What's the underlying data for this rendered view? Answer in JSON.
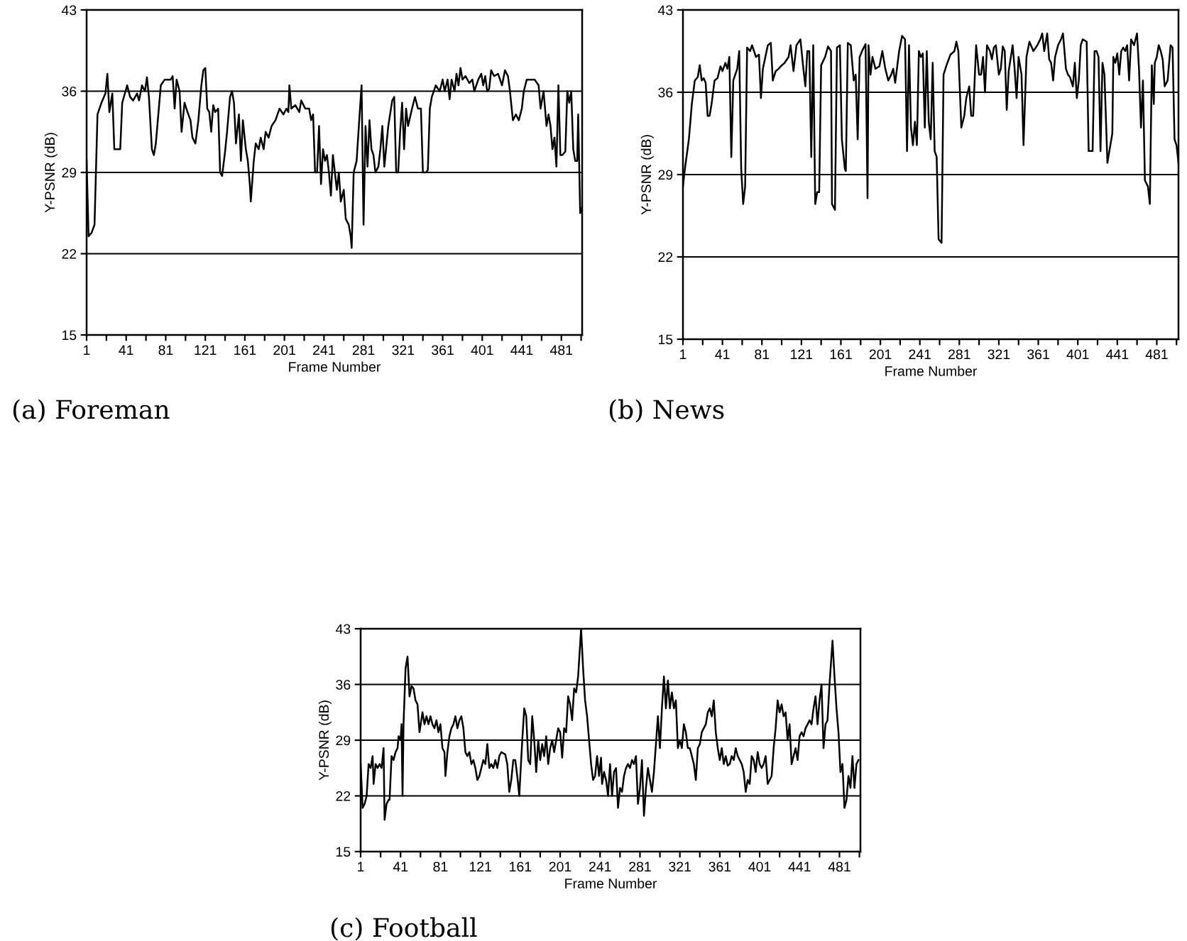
{
  "chart_data": [
    {
      "type": "line",
      "title": "(a) Foreman",
      "xlabel": "Frame Number",
      "ylabel": "Y-PSNR (dB)",
      "xlim": [
        1,
        502
      ],
      "ylim": [
        15,
        43
      ],
      "yticks": [
        15,
        22,
        29,
        36,
        43
      ],
      "xticks": [
        1,
        {
          "value": 21,
          "label": null
        },
        41,
        {
          "value": 61,
          "label": null
        },
        81,
        {
          "value": 101,
          "label": null
        },
        121,
        {
          "value": 141,
          "label": null
        },
        161,
        {
          "value": 181,
          "label": null
        },
        201,
        {
          "value": 221,
          "label": null
        },
        241,
        {
          "value": 261,
          "label": null
        },
        281,
        {
          "value": 301,
          "label": null
        },
        321,
        {
          "value": 341,
          "label": null
        },
        361,
        {
          "value": 381,
          "label": null
        },
        401,
        {
          "value": 421,
          "label": null
        },
        441,
        {
          "value": 461,
          "label": null
        },
        481,
        {
          "value": 501,
          "label": null
        }
      ],
      "grid": "y",
      "line_style": "solid",
      "marker": "none",
      "series": [
        {
          "color": "#000000",
          "x": [
            1,
            3,
            6,
            9,
            12,
            16,
            20,
            22,
            24,
            27,
            29,
            35,
            37,
            42,
            45,
            48,
            52,
            54,
            57,
            60,
            62,
            64,
            67,
            69,
            71,
            76,
            80,
            86,
            88,
            90,
            92,
            95,
            97,
            100,
            103,
            106,
            108,
            111,
            114,
            117,
            119,
            121,
            123,
            125,
            127,
            129,
            131,
            134,
            136,
            138,
            141,
            143,
            146,
            148,
            150,
            152,
            155,
            157,
            159,
            162,
            164,
            166,
            167,
            170,
            172,
            175,
            177,
            180,
            182,
            185,
            188,
            192,
            196,
            200,
            203,
            205,
            206,
            208,
            212,
            216,
            218,
            222,
            226,
            228,
            230,
            232,
            234,
            236,
            238,
            240,
            242,
            244,
            246,
            248,
            250,
            254,
            256,
            258,
            261,
            263,
            266,
            268,
            269,
            271,
            274,
            277,
            279,
            281,
            283,
            285,
            287,
            289,
            291,
            293,
            296,
            298,
            300,
            302,
            306,
            310,
            312,
            314,
            316,
            318,
            320,
            322,
            324,
            326,
            330,
            333,
            336,
            339,
            341,
            344,
            346,
            348,
            350,
            354,
            358,
            361,
            363,
            366,
            368,
            370,
            373,
            375,
            377,
            379,
            381,
            384,
            388,
            391,
            393,
            397,
            400,
            402,
            404,
            406,
            408,
            410,
            413,
            417,
            421,
            424,
            427,
            429,
            432,
            435,
            438,
            441,
            443,
            446,
            450,
            454,
            458,
            460,
            463,
            466,
            468,
            470,
            472,
            474,
            476,
            478,
            480,
            482,
            485,
            487,
            489,
            491,
            493,
            495,
            497,
            498,
            500,
            502
          ],
          "values": [
            30,
            23.5,
            23.8,
            24.5,
            34,
            35,
            35.8,
            37.5,
            34.2,
            35.8,
            31,
            31,
            35,
            36.5,
            35.5,
            35.2,
            35.8,
            35.2,
            36.5,
            36,
            37.2,
            35.5,
            31,
            30.5,
            31.5,
            36.5,
            37,
            37,
            37.3,
            34.5,
            37,
            36,
            32.5,
            35,
            34.2,
            33.5,
            32,
            31.5,
            33.5,
            36.5,
            37.8,
            38,
            34.5,
            34.2,
            32.5,
            34.8,
            34.2,
            34.5,
            29,
            28.7,
            30.8,
            32.5,
            35.5,
            36,
            35,
            31.5,
            34,
            30,
            33.5,
            31,
            30,
            28,
            26.5,
            30,
            31.5,
            31,
            32,
            31,
            32.5,
            32,
            33,
            33.5,
            34.5,
            34,
            34.5,
            34.2,
            36.5,
            34.5,
            34.8,
            34.2,
            35.2,
            34.5,
            34.5,
            33.5,
            34,
            29,
            29,
            33,
            28,
            31,
            30,
            30.5,
            29,
            27,
            30.5,
            27.5,
            29,
            26.5,
            27.5,
            25,
            24.5,
            23.5,
            22.5,
            29,
            30,
            34,
            36.5,
            24.5,
            33,
            29.5,
            33.5,
            31,
            30.5,
            29,
            29.5,
            31,
            33,
            29.5,
            33,
            35.2,
            35.5,
            29,
            29,
            32.5,
            35,
            31,
            34.5,
            33,
            34.5,
            35.5,
            34.5,
            34.5,
            29,
            29,
            29.2,
            34.5,
            35.5,
            36.5,
            36,
            37,
            36,
            37,
            35.3,
            37,
            36,
            37.5,
            36.5,
            38,
            37,
            37.3,
            36.7,
            37,
            36,
            37,
            37.5,
            36.5,
            37.3,
            36,
            36.2,
            37.8,
            37.3,
            37.5,
            36.5,
            37.8,
            37.3,
            36,
            33.5,
            34,
            33.5,
            34.5,
            36,
            37,
            37,
            37,
            36.5,
            34.5,
            36,
            33,
            34,
            33,
            31,
            32,
            29.5,
            36.5,
            30.5,
            30.5,
            30.8,
            36,
            35,
            36,
            31,
            30,
            30,
            34,
            25.5,
            26
          ]
        }
      ]
    },
    {
      "type": "line",
      "title": "(b) News",
      "xlabel": "Frame Number",
      "ylabel": "Y-PSNR (dB)",
      "xlim": [
        1,
        503
      ],
      "ylim": [
        15,
        43
      ],
      "yticks": [
        15,
        22,
        29,
        36,
        43
      ],
      "xticks": [
        1,
        {
          "value": 21,
          "label": null
        },
        41,
        {
          "value": 61,
          "label": null
        },
        81,
        {
          "value": 101,
          "label": null
        },
        121,
        {
          "value": 141,
          "label": null
        },
        161,
        {
          "value": 181,
          "label": null
        },
        201,
        {
          "value": 221,
          "label": null
        },
        241,
        {
          "value": 261,
          "label": null
        },
        281,
        {
          "value": 301,
          "label": null
        },
        321,
        {
          "value": 341,
          "label": null
        },
        361,
        {
          "value": 381,
          "label": null
        },
        401,
        {
          "value": 421,
          "label": null
        },
        441,
        {
          "value": 461,
          "label": null
        },
        481,
        {
          "value": 501,
          "label": null
        }
      ],
      "grid": "y",
      "line_style": "solid",
      "marker": "none",
      "series": [
        {
          "color": "#000000",
          "x": [
            1,
            3,
            7,
            10,
            13,
            16,
            18,
            20,
            22,
            24,
            26,
            28,
            30,
            33,
            36,
            39,
            41,
            44,
            46,
            48,
            50,
            52,
            56,
            58,
            60,
            62,
            64,
            66,
            69,
            71,
            73,
            75,
            78,
            80,
            82,
            84,
            87,
            90,
            92,
            95,
            98,
            100,
            104,
            108,
            110,
            113,
            116,
            120,
            123,
            125,
            127,
            129,
            131,
            133,
            135,
            137,
            139,
            141,
            145,
            148,
            151,
            152,
            155,
            157,
            160,
            162,
            165,
            166,
            168,
            171,
            174,
            176,
            178,
            180,
            183,
            186,
            188,
            189,
            191,
            193,
            196,
            200,
            203,
            206,
            209,
            212,
            214,
            216,
            220,
            223,
            226,
            228,
            230,
            232,
            234,
            236,
            238,
            240,
            242,
            244,
            246,
            248,
            250,
            252,
            254,
            256,
            258,
            260,
            263,
            265,
            268,
            272,
            276,
            278,
            280,
            283,
            286,
            288,
            291,
            293,
            295,
            298,
            301,
            303,
            305,
            307,
            309,
            312,
            314,
            316,
            318,
            321,
            323,
            325,
            327,
            329,
            331,
            335,
            337,
            339,
            341,
            344,
            346,
            349,
            352,
            356,
            360,
            363,
            365,
            367,
            370,
            372,
            374,
            376,
            378,
            381,
            384,
            386,
            389,
            391,
            393,
            396,
            398,
            400,
            402,
            404,
            406,
            410,
            412,
            416,
            418,
            420,
            422,
            424,
            426,
            428,
            431,
            433,
            436,
            437,
            439,
            441,
            443,
            445,
            447,
            449,
            451,
            453,
            455,
            458,
            461,
            463,
            465,
            467,
            469,
            472,
            474,
            476,
            478,
            479,
            481,
            483,
            485,
            487,
            489,
            492,
            495,
            497,
            499,
            501,
            503
          ],
          "values": [
            28,
            29.5,
            32,
            35,
            37,
            37.3,
            38.3,
            37,
            37.2,
            36.8,
            34,
            34,
            35,
            37,
            37.2,
            38.2,
            37.8,
            38.5,
            38,
            39,
            30.5,
            37,
            38,
            39.5,
            29.5,
            26.5,
            28,
            39.8,
            39.5,
            40,
            39.5,
            39,
            39.2,
            35.5,
            38,
            38.8,
            40,
            40.2,
            37,
            37.8,
            38,
            38.2,
            38.5,
            39,
            40,
            37.8,
            40,
            40.5,
            38,
            36.5,
            39.5,
            39.5,
            30.5,
            40,
            26.5,
            27.5,
            27.5,
            38.3,
            39,
            39.9,
            39.5,
            26.5,
            26,
            39.8,
            40,
            32,
            29.5,
            29.3,
            40.2,
            40,
            37,
            37.5,
            32,
            39,
            39.6,
            40.1,
            27,
            40,
            37.5,
            39,
            38,
            38.2,
            39.5,
            38,
            37,
            37.5,
            38,
            36.8,
            39.5,
            40.8,
            40.5,
            31,
            40,
            33,
            31.5,
            33.5,
            31.5,
            39.5,
            39,
            39.3,
            33,
            39.5,
            33.5,
            32,
            38.5,
            31,
            30.5,
            23.5,
            23.2,
            37.5,
            38.3,
            39.2,
            39.5,
            40.3,
            39.5,
            33,
            34,
            35.5,
            36.5,
            34,
            34,
            40,
            37.5,
            37.5,
            39,
            36,
            40,
            39.5,
            38.8,
            39.8,
            40,
            37.5,
            38,
            39.9,
            39.5,
            34.5,
            37.8,
            40,
            38,
            35.5,
            39,
            37.5,
            31.5,
            39,
            40.3,
            39.5,
            40,
            40.5,
            41,
            39.5,
            41,
            38.8,
            38.5,
            37,
            39,
            40,
            40.5,
            41,
            38,
            37.5,
            37.3,
            36.5,
            38.5,
            35.5,
            37,
            40,
            40.5,
            40.3,
            31,
            31,
            39.5,
            39.5,
            39,
            31,
            38.5,
            37.5,
            30,
            31,
            32.5,
            39,
            38.5,
            39.3,
            37.5,
            39.5,
            39.8,
            39.5,
            40,
            37,
            40.5,
            40,
            41,
            38,
            33,
            37,
            28.5,
            28,
            26.5,
            38.3,
            35,
            38.5,
            39,
            40,
            39.5,
            38.8,
            36.5,
            37,
            40,
            39.8,
            32,
            31.5,
            30
          ]
        }
      ]
    },
    {
      "type": "line",
      "title": "(c) Football",
      "xlabel": "Frame Number",
      "ylabel": "Y-PSNR (dB)",
      "xlim": [
        1,
        502
      ],
      "ylim": [
        15,
        43
      ],
      "yticks": [
        15,
        22,
        29,
        36,
        43
      ],
      "xticks": [
        1,
        {
          "value": 21,
          "label": null
        },
        41,
        {
          "value": 61,
          "label": null
        },
        81,
        {
          "value": 101,
          "label": null
        },
        121,
        {
          "value": 141,
          "label": null
        },
        161,
        {
          "value": 181,
          "label": null
        },
        201,
        {
          "value": 221,
          "label": null
        },
        241,
        {
          "value": 261,
          "label": null
        },
        281,
        {
          "value": 301,
          "label": null
        },
        321,
        {
          "value": 341,
          "label": null
        },
        361,
        {
          "value": 381,
          "label": null
        },
        401,
        {
          "value": 421,
          "label": null
        },
        441,
        {
          "value": 461,
          "label": null
        },
        481,
        {
          "value": 501,
          "label": null
        }
      ],
      "grid": "y",
      "line_style": "solid",
      "marker": "none",
      "series": [
        {
          "color": "#000000",
          "x": [
            1,
            3,
            5,
            7,
            9,
            11,
            13,
            14,
            16,
            18,
            20,
            22,
            24,
            25,
            27,
            29,
            30,
            32,
            34,
            36,
            38,
            39,
            41,
            42,
            43,
            44,
            46,
            48,
            50,
            52,
            54,
            56,
            58,
            60,
            63,
            65,
            67,
            69,
            71,
            73,
            75,
            77,
            79,
            81,
            83,
            85,
            86,
            88,
            90,
            92,
            94,
            96,
            98,
            100,
            102,
            104,
            106,
            108,
            110,
            112,
            114,
            116,
            118,
            120,
            122,
            124,
            126,
            128,
            130,
            132,
            134,
            136,
            138,
            140,
            142,
            146,
            148,
            150,
            152,
            154,
            156,
            158,
            160,
            163,
            165,
            167,
            169,
            171,
            173,
            175,
            177,
            179,
            181,
            183,
            185,
            187,
            189,
            191,
            193,
            195,
            197,
            199,
            201,
            203,
            205,
            207,
            209,
            211,
            213,
            215,
            217,
            219,
            222,
            224,
            226,
            228,
            230,
            232,
            234,
            236,
            238,
            240,
            242,
            243,
            245,
            247,
            249,
            251,
            253,
            255,
            257,
            259,
            261,
            263,
            265,
            267,
            269,
            271,
            273,
            275,
            277,
            279,
            281,
            283,
            285,
            287,
            289,
            291,
            293,
            295,
            297,
            299,
            301,
            303,
            305,
            307,
            309,
            311,
            313,
            315,
            317,
            319,
            321,
            323,
            325,
            327,
            329,
            331,
            333,
            335,
            337,
            339,
            341,
            343,
            345,
            347,
            349,
            351,
            353,
            355,
            357,
            359,
            361,
            363,
            365,
            367,
            369,
            371,
            373,
            375,
            377,
            379,
            381,
            383,
            385,
            387,
            389,
            391,
            393,
            395,
            397,
            399,
            401,
            403,
            405,
            407,
            409,
            411,
            413,
            415,
            417,
            419,
            421,
            423,
            425,
            427,
            429,
            431,
            433,
            435,
            437,
            439,
            441,
            443,
            445,
            447,
            449,
            451,
            453,
            455,
            457,
            459,
            461,
            463,
            465,
            467,
            469,
            471,
            474,
            476,
            478,
            480,
            482,
            484,
            486,
            488,
            490,
            492,
            494,
            496,
            498,
            500
          ],
          "values": [
            26,
            20.5,
            21,
            22,
            26,
            25.5,
            27,
            23.5,
            26,
            25.5,
            26,
            25.5,
            28,
            19,
            21,
            21.5,
            21.5,
            27,
            26.5,
            27.5,
            28,
            29.5,
            29,
            31,
            22,
            31,
            38,
            39.5,
            34.5,
            35.8,
            35.5,
            34,
            33.5,
            30,
            32.5,
            31,
            32,
            31,
            32,
            31,
            30.5,
            31.5,
            30,
            31,
            28,
            27.5,
            24.5,
            27.5,
            29.5,
            30.5,
            31,
            32,
            30.5,
            31.5,
            32,
            30.5,
            27.5,
            27,
            27.5,
            26,
            26.5,
            25.5,
            24,
            24.5,
            25.5,
            26.5,
            26,
            28.5,
            25.5,
            26,
            25.5,
            26.5,
            25.5,
            27,
            27.5,
            27.2,
            26,
            22.5,
            24,
            26.5,
            26.5,
            24.5,
            22,
            29,
            33,
            32,
            26.5,
            26,
            32,
            29,
            25,
            29,
            26.5,
            28.5,
            27,
            29.5,
            26,
            28,
            29,
            27.5,
            29,
            30.5,
            30,
            26.8,
            30.5,
            30,
            34.5,
            33.5,
            31.5,
            35.5,
            35,
            37,
            43,
            38,
            34,
            32,
            29,
            26,
            24,
            24.5,
            27,
            24.5,
            26.8,
            23.5,
            25,
            24,
            22,
            26,
            22,
            25,
            25.5,
            20.5,
            23,
            22.5,
            24.5,
            25.5,
            26,
            25.5,
            26.5,
            26,
            27,
            21,
            23,
            26.5,
            19.5,
            23,
            25.5,
            24,
            22.5,
            25,
            28.5,
            32,
            28,
            33,
            37,
            33,
            36.5,
            33,
            35,
            33,
            34,
            28,
            29,
            28,
            31,
            30,
            28,
            28,
            27,
            26,
            24,
            28,
            28.5,
            30,
            30.5,
            31,
            32.5,
            33,
            32,
            34,
            30,
            28,
            26.5,
            28,
            26,
            27,
            25.8,
            26,
            27,
            26.5,
            28,
            27,
            26.5,
            26,
            25,
            22.5,
            24,
            23.5,
            27,
            26.5,
            25,
            27.5,
            26,
            25.5,
            26,
            27,
            23.5,
            24,
            24.5,
            28,
            30.5,
            34,
            32.5,
            33.5,
            32,
            32.5,
            29,
            31,
            26,
            27,
            28,
            26.5,
            29.5,
            30,
            29.5,
            30.5,
            31,
            31.5,
            31,
            33,
            34.5,
            31,
            34,
            36,
            28,
            31,
            31.5,
            36,
            41.5,
            37,
            33,
            30,
            25,
            26,
            20.5,
            21.5,
            24.5,
            23,
            27,
            23,
            26,
            26.5
          ]
        }
      ]
    }
  ]
}
